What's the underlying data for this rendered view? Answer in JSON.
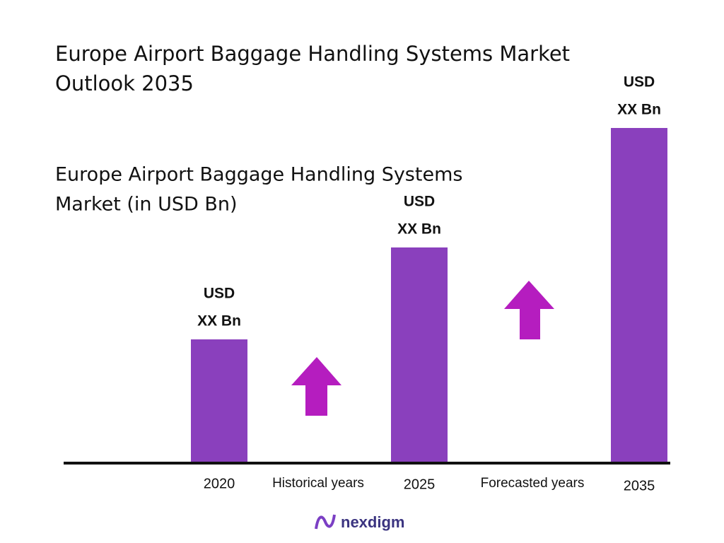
{
  "chart_data": {
    "type": "bar",
    "title": [
      "Europe Airport Baggage Handling Systems Market",
      "Outlook 2035"
    ],
    "subtitle": [
      "Europe Airport Baggage Handling Systems",
      "Market (in USD Bn)"
    ],
    "categories": [
      "2020",
      "2025",
      "2035"
    ],
    "values": [
      173,
      303,
      472
    ],
    "value_labels": [
      [
        "USD",
        "XX Bn"
      ],
      [
        "USD",
        "XX Bn"
      ],
      [
        "USD",
        "XX Bn"
      ]
    ],
    "color": "#8a40bd",
    "annotations": [
      "Historical years",
      "Forecasted years"
    ],
    "brand": "nexdigm"
  }
}
